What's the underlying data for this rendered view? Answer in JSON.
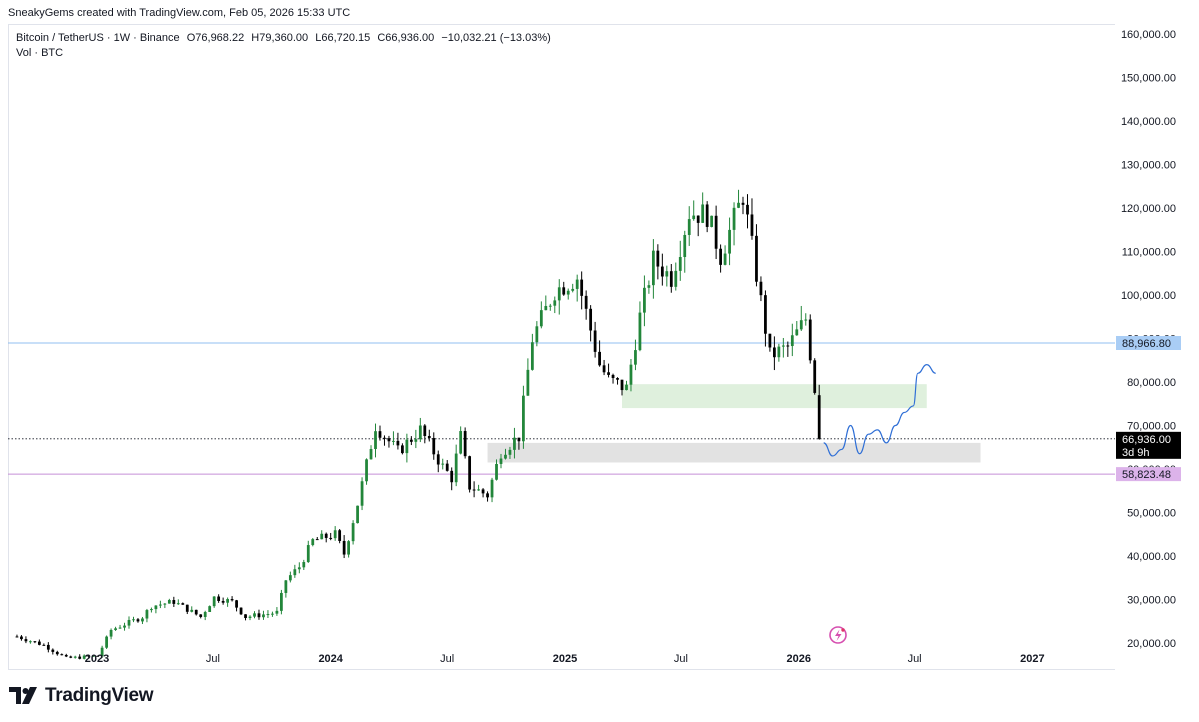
{
  "byline": "SneakyGems created with TradingView.com, Feb 05, 2026 15:33 UTC",
  "legend": {
    "symbol": "Bitcoin / TetherUS · 1W · Binance",
    "open": "O76,968.22",
    "high": "H79,360.00",
    "low": "L66,720.15",
    "close": "C66,936.00",
    "change": "−10,032.21 (−13.03%)",
    "volume_label": "Vol · BTC"
  },
  "brand": "TradingView",
  "colors": {
    "up": "#22863a",
    "down": "#000000",
    "hline_blue": "#90bff0",
    "hline_purple": "#c58fd6",
    "label_blue": "#a9cdf5",
    "label_purple": "#dcb3ea",
    "zone_green": "#dff0dd",
    "zone_gray": "#e2e2e2",
    "projection": "#2f6fd6"
  },
  "chart_data": {
    "type": "candlestick",
    "interval": "1W",
    "ylim": [
      20000,
      160000
    ],
    "y_scale": "linear",
    "grid": false,
    "y_ticks": [
      "160,000.00",
      "150,000.00",
      "140,000.00",
      "130,000.00",
      "120,000.00",
      "110,000.00",
      "100,000.00",
      "90,000.00",
      "80,000.00",
      "70,000.00",
      "60,000.00",
      "50,000.00",
      "40,000.00",
      "30,000.00",
      "20,000.00"
    ],
    "x_ticks": [
      {
        "label": "2023",
        "date": "2023-01-01",
        "year": true
      },
      {
        "label": "Jul",
        "date": "2023-07-01",
        "year": false
      },
      {
        "label": "2024",
        "date": "2024-01-01",
        "year": true
      },
      {
        "label": "Jul",
        "date": "2024-07-01",
        "year": false
      },
      {
        "label": "2025",
        "date": "2025-01-01",
        "year": true
      },
      {
        "label": "Jul",
        "date": "2025-07-01",
        "year": false
      },
      {
        "label": "2026",
        "date": "2026-01-01",
        "year": true
      },
      {
        "label": "Jul",
        "date": "2026-07-01",
        "year": false
      },
      {
        "label": "2027",
        "date": "2027-01-01",
        "year": true
      }
    ],
    "x_range": [
      "2022-08-15",
      "2027-05-10"
    ],
    "anchors": [
      [
        "2022-08-29",
        21500
      ],
      [
        "2022-10-10",
        19500
      ],
      [
        "2022-11-14",
        16500
      ],
      [
        "2023-01-02",
        17000
      ],
      [
        "2023-01-23",
        23000
      ],
      [
        "2023-03-13",
        26000
      ],
      [
        "2023-03-27",
        28500
      ],
      [
        "2023-05-01",
        29500
      ],
      [
        "2023-06-12",
        26000
      ],
      [
        "2023-07-03",
        30500
      ],
      [
        "2023-07-31",
        29500
      ],
      [
        "2023-08-21",
        26000
      ],
      [
        "2023-10-09",
        27000
      ],
      [
        "2023-10-23",
        34500
      ],
      [
        "2023-11-13",
        37500
      ],
      [
        "2023-12-04",
        43500
      ],
      [
        "2024-01-08",
        45000
      ],
      [
        "2024-01-22",
        40500
      ],
      [
        "2024-02-12",
        52000
      ],
      [
        "2024-03-11",
        70000
      ],
      [
        "2024-04-15",
        64000
      ],
      [
        "2024-05-20",
        69000
      ],
      [
        "2024-06-24",
        60500
      ],
      [
        "2024-07-08",
        58000
      ],
      [
        "2024-07-22",
        67500
      ],
      [
        "2024-08-05",
        56000
      ],
      [
        "2024-09-02",
        54000
      ],
      [
        "2024-09-23",
        64000
      ],
      [
        "2024-10-21",
        67500
      ],
      [
        "2024-11-11",
        90000
      ],
      [
        "2024-12-16",
        101000
      ],
      [
        "2025-01-20",
        104000
      ],
      [
        "2025-02-24",
        84000
      ],
      [
        "2025-03-10",
        80500
      ],
      [
        "2025-04-07",
        78500
      ],
      [
        "2025-04-28",
        95000
      ],
      [
        "2025-05-19",
        108000
      ],
      [
        "2025-06-16",
        104000
      ],
      [
        "2025-07-14",
        119000
      ],
      [
        "2025-08-11",
        118500
      ],
      [
        "2025-09-01",
        109000
      ],
      [
        "2025-10-06",
        123000
      ],
      [
        "2025-10-20",
        111000
      ],
      [
        "2025-11-17",
        86000
      ],
      [
        "2025-12-15",
        88000
      ],
      [
        "2026-01-12",
        94500
      ],
      [
        "2026-01-26",
        78500
      ],
      [
        "2026-02-02",
        66936
      ]
    ],
    "last_candle": {
      "open": 76968.22,
      "high": 79360.0,
      "low": 66720.15,
      "close": 66936.0
    },
    "horizontal_lines": [
      {
        "name": "blue-level",
        "value": 88966.8,
        "label": "88,966.80"
      },
      {
        "name": "purple-level",
        "value": 58823.48,
        "label": "58,823.48"
      }
    ],
    "current_price": {
      "value": 66936.0,
      "label": "66,936.00",
      "countdown": "3d 9h"
    },
    "zones": [
      {
        "name": "green-zone",
        "from": "2025-03-31",
        "to": "2026-07-20",
        "low": 74000,
        "high": 79500
      },
      {
        "name": "gray-zone",
        "from": "2024-09-02",
        "to": "2026-10-12",
        "low": 61500,
        "high": 66000
      }
    ],
    "projection": [
      [
        "2026-02-09",
        66000
      ],
      [
        "2026-02-23",
        63000
      ],
      [
        "2026-03-09",
        64500
      ],
      [
        "2026-03-23",
        70000
      ],
      [
        "2026-04-06",
        63500
      ],
      [
        "2026-04-20",
        68000
      ],
      [
        "2026-05-04",
        69000
      ],
      [
        "2026-05-18",
        66000
      ],
      [
        "2026-06-01",
        70000
      ],
      [
        "2026-06-15",
        73000
      ],
      [
        "2026-06-29",
        74500
      ],
      [
        "2026-07-06",
        82000
      ],
      [
        "2026-07-20",
        84000
      ],
      [
        "2026-08-03",
        82000
      ]
    ]
  }
}
